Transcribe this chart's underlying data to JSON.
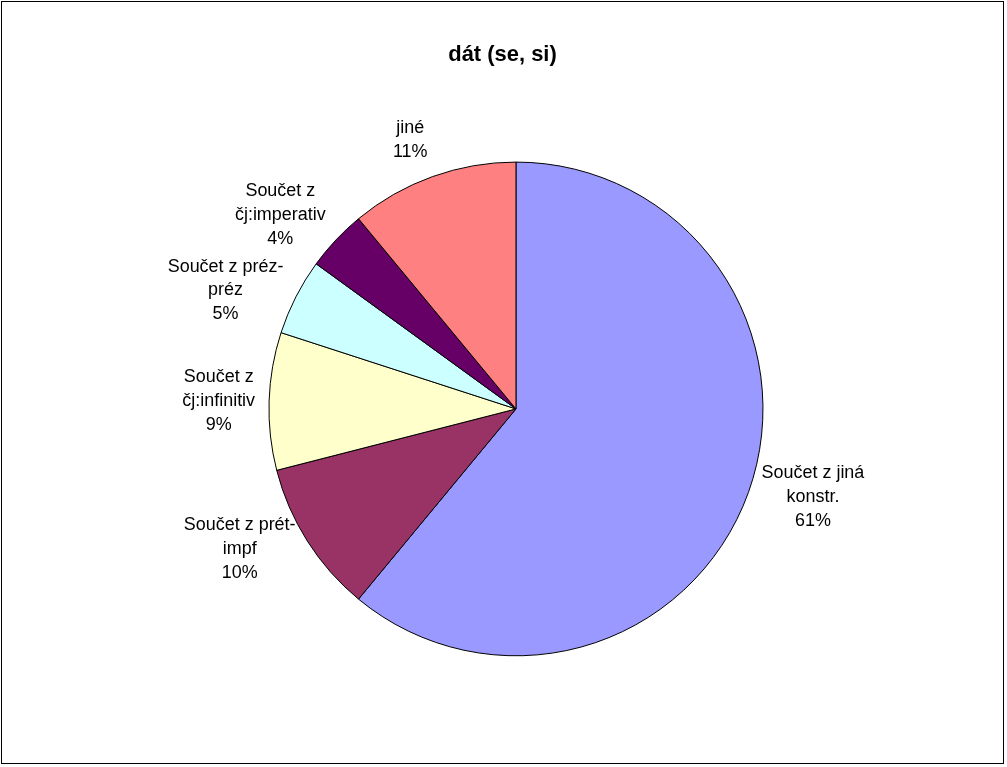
{
  "chart_data": {
    "type": "pie",
    "title": "dát (se, si)",
    "categories": [
      "Součet z jiná konstr.",
      "Součet z prét-impf",
      "Součet z čj:infinitiv",
      "Součet z préz-préz",
      "Součet z čj:imperativ",
      "jiné"
    ],
    "values": [
      61,
      10,
      9,
      5,
      4,
      11
    ],
    "colors": [
      "#9999ff",
      "#993366",
      "#ffffcc",
      "#ccffff",
      "#660066",
      "#ff8080"
    ],
    "value_labels": [
      "61%",
      "10%",
      "9%",
      "5%",
      "4%",
      "11%"
    ],
    "legend": false
  }
}
